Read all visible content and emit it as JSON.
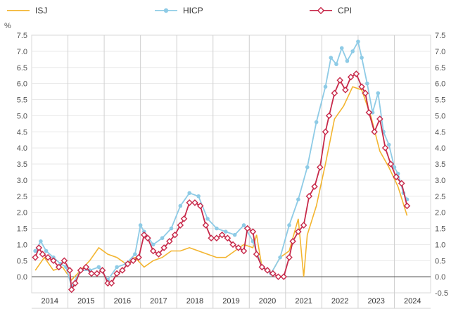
{
  "chart_data": {
    "type": "line",
    "title": "",
    "xlabel": "",
    "ylabel": "%",
    "ylim": [
      -0.5,
      7.5
    ],
    "y_ticks": [
      -0.5,
      0.0,
      0.5,
      1.0,
      1.5,
      2.0,
      2.5,
      3.0,
      3.5,
      4.0,
      4.5,
      5.0,
      5.5,
      6.0,
      6.5,
      7.0,
      7.5
    ],
    "y_ticks_right": [
      "-0.5",
      "0.0",
      "0.5",
      "1.0",
      "1.5",
      "2.0",
      "2.5",
      "3.0",
      "3.5",
      "4.0",
      "4.5",
      "5.0",
      "5.5",
      "6.0",
      "6.5",
      "7.0",
      "7.5"
    ],
    "y_ticks_left": [
      "0.0",
      "0.5",
      "1.0",
      "1.5",
      "2.0",
      "2.5",
      "3.0",
      "3.5",
      "4.0",
      "4.5",
      "5.0",
      "5.5",
      "6.0",
      "6.5",
      "7.0",
      "7.5"
    ],
    "x_range": [
      2013.9,
      2024.9
    ],
    "years": [
      "2014",
      "2015",
      "2016",
      "2017",
      "2018",
      "2019",
      "2020",
      "2021",
      "2022",
      "2023",
      "2024"
    ],
    "legend": [
      {
        "name": "ISJ",
        "color": "#f3b530",
        "marker": "none"
      },
      {
        "name": "HICP",
        "color": "#8ecbe6",
        "marker": "circle"
      },
      {
        "name": "CPI",
        "color": "#c7294a",
        "marker": "diamond"
      }
    ],
    "series": [
      {
        "name": "ISJ",
        "color": "#f3b530",
        "x": [
          2014.0,
          2014.25,
          2014.5,
          2014.75,
          2015.0,
          2015.25,
          2015.5,
          2015.75,
          2016.0,
          2016.25,
          2016.5,
          2016.75,
          2017.0,
          2017.25,
          2017.5,
          2017.75,
          2018.0,
          2018.25,
          2018.5,
          2018.75,
          2019.0,
          2019.25,
          2019.5,
          2019.75,
          2020.0,
          2020.1,
          2020.25,
          2020.5,
          2020.75,
          2021.0,
          2021.25,
          2021.4,
          2021.5,
          2021.75,
          2022.0,
          2022.25,
          2022.5,
          2022.75,
          2023.0,
          2023.25,
          2023.5,
          2023.75,
          2024.0,
          2024.25
        ],
        "y": [
          0.2,
          0.6,
          0.2,
          0.3,
          -0.1,
          0.2,
          0.5,
          0.9,
          0.7,
          0.6,
          0.4,
          0.6,
          0.3,
          0.5,
          0.6,
          0.8,
          0.8,
          0.9,
          0.8,
          0.7,
          0.6,
          0.6,
          0.8,
          1.0,
          0.9,
          1.3,
          0.3,
          0.1,
          0.6,
          0.8,
          1.8,
          0.0,
          1.3,
          2.2,
          3.5,
          4.9,
          5.3,
          5.9,
          5.8,
          5.0,
          3.9,
          3.4,
          2.8,
          1.9
        ]
      },
      {
        "name": "HICP",
        "color": "#8ecbe6",
        "x": [
          2014.0,
          2014.15,
          2014.3,
          2014.5,
          2014.7,
          2014.85,
          2015.0,
          2015.25,
          2015.5,
          2015.75,
          2016.0,
          2016.25,
          2016.5,
          2016.75,
          2016.9,
          2017.0,
          2017.25,
          2017.5,
          2017.75,
          2018.0,
          2018.25,
          2018.5,
          2018.75,
          2019.0,
          2019.25,
          2019.5,
          2019.75,
          2020.0,
          2020.25,
          2020.5,
          2020.75,
          2021.0,
          2021.25,
          2021.5,
          2021.75,
          2022.0,
          2022.15,
          2022.3,
          2022.45,
          2022.6,
          2022.75,
          2022.9,
          2023.0,
          2023.15,
          2023.3,
          2023.45,
          2023.6,
          2023.75,
          2023.9,
          2024.0,
          2024.15,
          2024.25
        ],
        "y": [
          0.8,
          1.1,
          0.8,
          0.6,
          0.4,
          0.3,
          -0.3,
          0.2,
          0.2,
          0.3,
          -0.1,
          0.3,
          0.4,
          0.7,
          1.6,
          1.4,
          1.0,
          1.2,
          1.5,
          2.2,
          2.6,
          2.5,
          1.8,
          1.5,
          1.4,
          1.3,
          1.6,
          1.1,
          0.3,
          0.1,
          0.6,
          1.6,
          2.4,
          3.4,
          4.8,
          5.9,
          6.8,
          6.6,
          7.1,
          6.7,
          7.0,
          7.3,
          6.8,
          6.0,
          5.1,
          5.7,
          4.5,
          4.1,
          3.4,
          3.2,
          2.6,
          2.4
        ]
      },
      {
        "name": "CPI",
        "color": "#c7294a",
        "x": [
          2014.0,
          2014.1,
          2014.2,
          2014.35,
          2014.5,
          2014.65,
          2014.8,
          2014.95,
          2015.0,
          2015.1,
          2015.25,
          2015.4,
          2015.55,
          2015.7,
          2015.85,
          2016.0,
          2016.1,
          2016.25,
          2016.4,
          2016.55,
          2016.7,
          2016.85,
          2017.0,
          2017.1,
          2017.25,
          2017.4,
          2017.55,
          2017.7,
          2017.85,
          2018.0,
          2018.1,
          2018.25,
          2018.4,
          2018.55,
          2018.7,
          2018.85,
          2019.0,
          2019.15,
          2019.3,
          2019.45,
          2019.6,
          2019.75,
          2019.85,
          2020.0,
          2020.1,
          2020.25,
          2020.4,
          2020.55,
          2020.7,
          2020.85,
          2021.0,
          2021.1,
          2021.25,
          2021.4,
          2021.55,
          2021.7,
          2021.85,
          2022.0,
          2022.1,
          2022.25,
          2022.4,
          2022.55,
          2022.7,
          2022.85,
          2023.0,
          2023.1,
          2023.2,
          2023.35,
          2023.5,
          2023.65,
          2023.8,
          2023.95,
          2024.1,
          2024.25
        ],
        "y": [
          0.6,
          0.9,
          0.7,
          0.6,
          0.5,
          0.3,
          0.5,
          0.2,
          -0.4,
          -0.2,
          0.2,
          0.3,
          0.1,
          0.1,
          0.2,
          -0.2,
          -0.2,
          0.1,
          0.2,
          0.4,
          0.5,
          0.6,
          1.3,
          1.2,
          0.8,
          0.7,
          0.9,
          1.1,
          1.3,
          1.6,
          1.8,
          2.3,
          2.3,
          2.2,
          1.6,
          1.2,
          1.2,
          1.3,
          1.2,
          1.0,
          0.9,
          0.8,
          1.5,
          1.4,
          0.7,
          0.3,
          0.2,
          0.1,
          0.0,
          0.0,
          0.6,
          1.1,
          1.4,
          1.6,
          2.5,
          2.8,
          3.4,
          4.5,
          5.0,
          5.7,
          6.1,
          5.8,
          6.2,
          6.3,
          5.9,
          5.7,
          5.1,
          4.5,
          4.9,
          4.0,
          3.5,
          3.1,
          2.9,
          2.2
        ]
      }
    ]
  }
}
